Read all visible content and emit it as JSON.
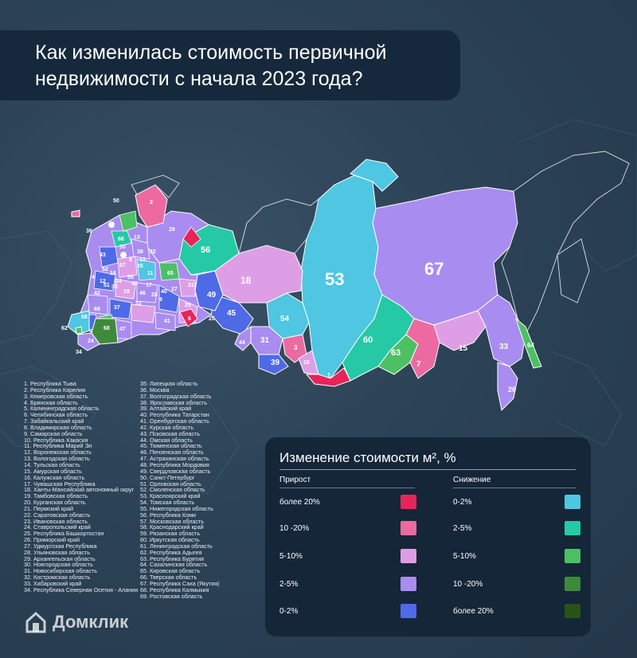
{
  "title": "Как изменилась стоимость первичной недвижимости с начала 2023 года?",
  "regions_col1": [
    "1.   Республика Тыва",
    "2.   Республика Карелия",
    "3.   Кемеровская область",
    "4.   Брянская область",
    "5.   Калининградская область",
    "6.   Челябинская область",
    "7.   Забайкальский край",
    "8.   Владимирская область",
    "9.   Самарская область",
    "10.  Республика Хакасия",
    "11.  Республика Марий Эл",
    "12.  Воронежская область",
    "13.  Вологодская область",
    "14.  Тульская область",
    "15.  Амурская область",
    "16.  Калужская область",
    "17.  Чувашская Республика",
    "18.  Ханты-Мансийский автономный округ",
    "19.  Тамбовская область",
    "20.  Курганская область",
    "21.  Пермский край",
    "22.  Саратовская область",
    "23.  Ивановская область",
    "24.  Ставропольский край",
    "25.  Республика Башкортостан",
    "26.  Приморский край",
    "27.  Удмуртская Республика",
    "28.  Ульяновская область",
    "29.  Архангельская область",
    "30.  Новгородская область",
    "31.  Новосибирская область",
    "32.  Костромская область",
    "33.  Хабаровский край",
    "34.  Республика Северная Осетия - Алания"
  ],
  "regions_col2": [
    "35.  Липецкая область",
    "36.  Москва",
    "37.  Волгоградская область",
    "38.  Ярославская область",
    "39.  Алтайский край",
    "40.  Республика Татарстан",
    "41.  Оренбургская область",
    "42.  Курская область",
    "43.  Псковская область",
    "44.  Омская область",
    "45.  Тюменская область",
    "46.  Пензенская область",
    "47.  Астраханская область",
    "48.  Республика Мордовия",
    "49.  Свердловская область",
    "50.  Санкт-Петербург",
    "51.  Орловская область",
    "52.  Смоленская область",
    "53.  Красноярский край",
    "54.  Томская область",
    "55.  Нижегородская область",
    "56.  Республика Коми",
    "57.  Московская область",
    "58.  Краснодарский край",
    "59.  Рязанская область",
    "60.  Иркутская область",
    "61.  Ленинградская область",
    "62.  Республика Адыгея",
    "63.  Республика Бурятия",
    "64.  Сахалинская область",
    "65.  Кировская область",
    "66.  Тверская область",
    "67.  Республика Саха (Якутия)",
    "68.  Республика Калмыкия",
    "69.  Ростовская область"
  ],
  "legend": {
    "title": "Изменение стоимости м², %",
    "growth_header": "Прирост",
    "decline_header": "Снижение",
    "growth": [
      {
        "label": "более 20%",
        "color": "#e8245a"
      },
      {
        "label": "10 -20%",
        "color": "#ec6aa0"
      },
      {
        "label": "5-10%",
        "color": "#de9ee6"
      },
      {
        "label": "2-5%",
        "color": "#a98cf0"
      },
      {
        "label": "0-2%",
        "color": "#4e6ae6"
      }
    ],
    "decline": [
      {
        "label": "0-2%",
        "color": "#4fc6e2"
      },
      {
        "label": "2-5%",
        "color": "#26c9a5"
      },
      {
        "label": "5-10%",
        "color": "#4cc063"
      },
      {
        "label": "10 -20%",
        "color": "#3e8a3a"
      },
      {
        "label": "более 20%",
        "color": "#275418"
      }
    ]
  },
  "map_labels": {
    "r53": "53",
    "r67": "67",
    "r18": "18",
    "r56": "56",
    "r49": "49",
    "r45": "45",
    "r54": "54",
    "r31": "31",
    "r39": "39",
    "r60": "60",
    "r63": "63",
    "r7": "7",
    "r15": "15",
    "r33": "33",
    "r26": "26",
    "r64": "64",
    "r1": "1",
    "r10": "10",
    "r3": "3",
    "r68": "68",
    "r58": "58",
    "r62": "62",
    "r34": "34",
    "r36": "36",
    "r50": "50",
    "r2": "2",
    "r29": "29",
    "r21": "21",
    "r65": "65",
    "r25": "25",
    "r6": "6",
    "r20": "20",
    "r41": "41",
    "r37": "37",
    "r12": "12",
    "r22": "22",
    "r9": "9",
    "r27": "27",
    "r40": "40",
    "r11": "11",
    "r17": "17",
    "r55": "55",
    "r13": "13",
    "r66": "66",
    "r43": "43",
    "r52": "52",
    "r4": "4",
    "r16": "16",
    "r57": "57",
    "r14": "14",
    "r59": "59",
    "r19": "19",
    "r35": "35",
    "r42": "42",
    "r51": "51",
    "r46": "46",
    "r48": "48",
    "r28": "28",
    "r24": "24",
    "r47": "47",
    "r69": "69",
    "r30": "30",
    "r38": "38",
    "r23": "23",
    "r32": "32",
    "r8": "8",
    "r44": "44"
  },
  "brand": "Домклик"
}
